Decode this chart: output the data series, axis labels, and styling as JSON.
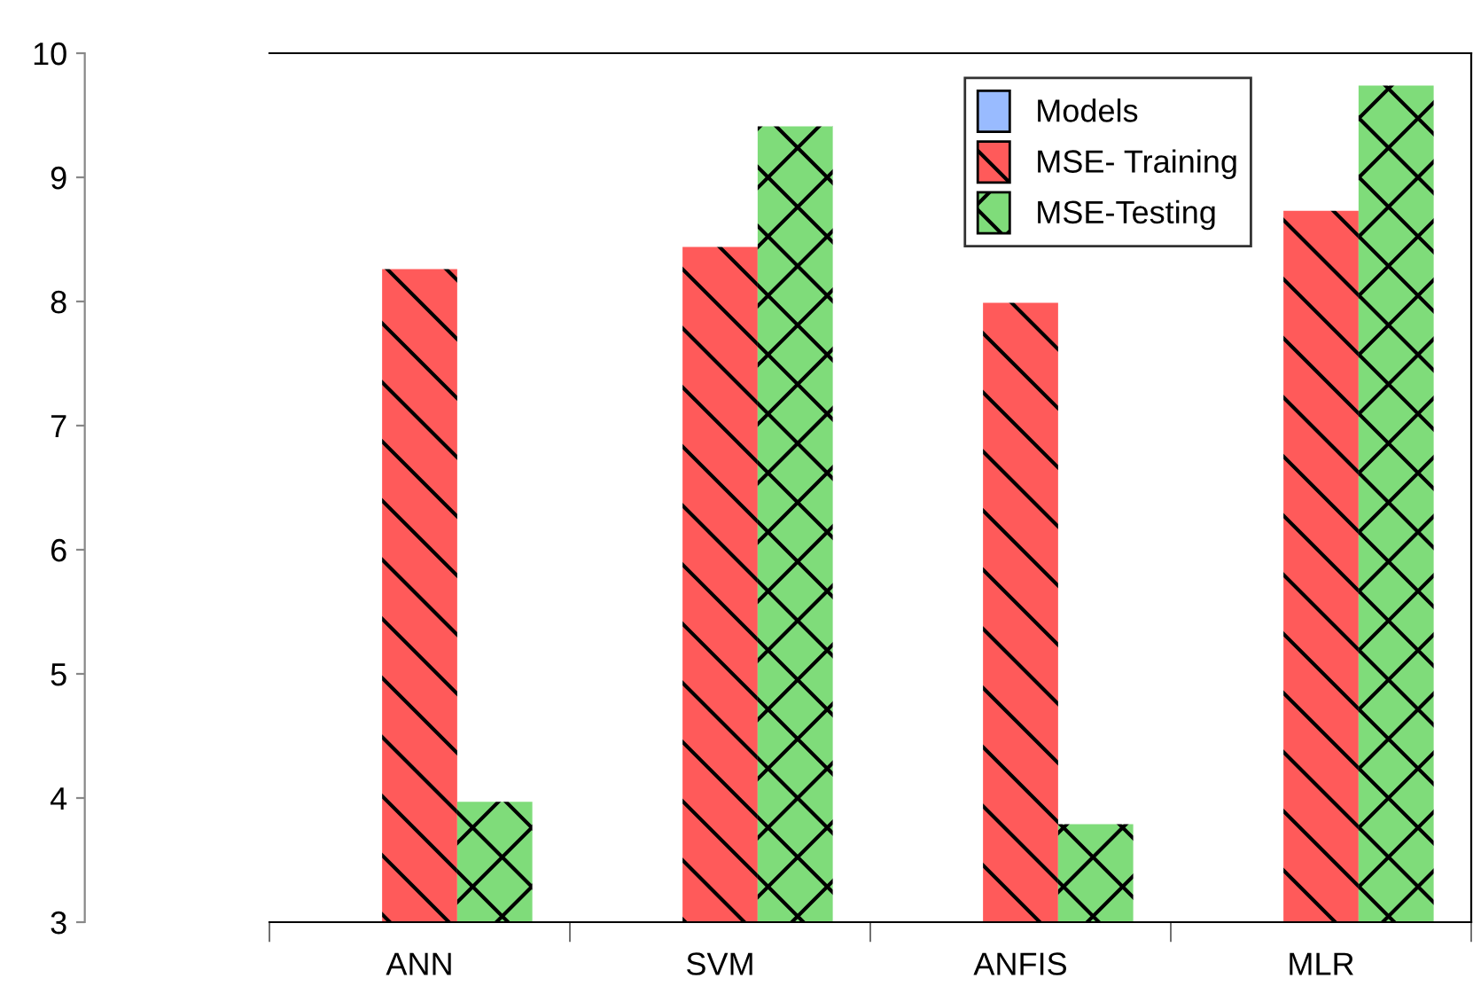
{
  "chart_data": {
    "type": "bar",
    "categories": [
      "ANN",
      "SVM",
      "ANFIS",
      "MLR"
    ],
    "series": [
      {
        "name": "Models",
        "color": "#99bbff",
        "values": [
          null,
          null,
          null,
          null
        ]
      },
      {
        "name": "MSE- Training",
        "color": "#ff5a5a",
        "values": [
          8.26,
          8.44,
          7.99,
          8.73
        ]
      },
      {
        "name": "MSE-Testing",
        "color": "#7fdc7a",
        "values": [
          3.97,
          9.41,
          3.79,
          9.74
        ]
      }
    ],
    "ylim": [
      3,
      10
    ],
    "yticks": [
      3,
      4,
      5,
      6,
      7,
      8,
      9,
      10
    ],
    "grid": false,
    "legend": "top right"
  }
}
